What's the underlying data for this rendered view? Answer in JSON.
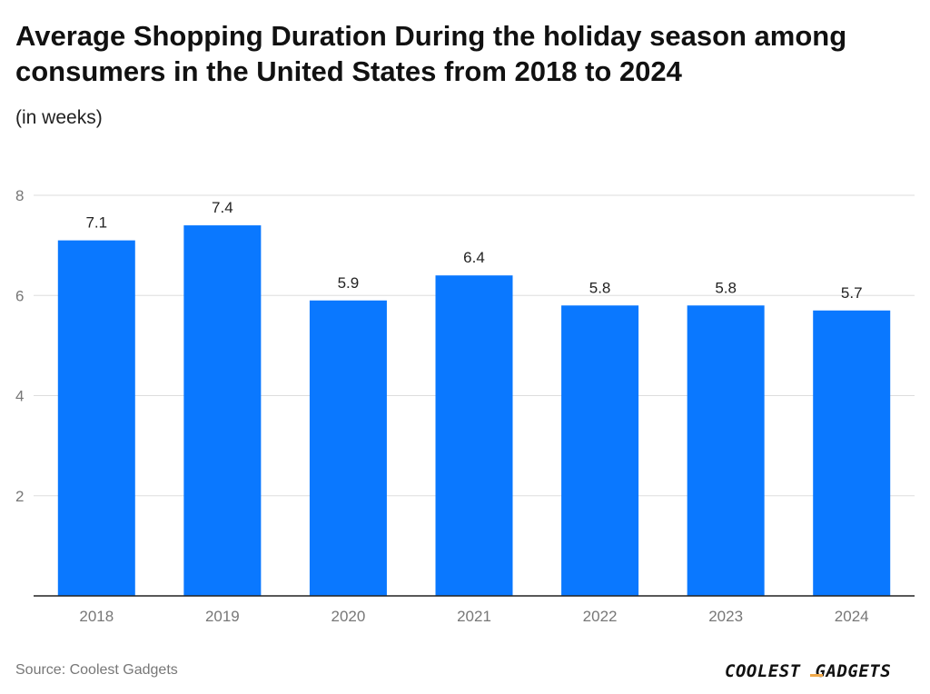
{
  "header": {
    "title": "Average Shopping Duration During the holiday season among consumers in the United States from 2018 to 2024",
    "subtitle": "(in weeks)"
  },
  "footer": {
    "source": "Source: Coolest Gadgets",
    "logo_text_left": "COOLEST",
    "logo_text_right": "GADGETS"
  },
  "colors": {
    "bar": "#0a78ff",
    "grid": "#dddddd",
    "axis": "#222222",
    "tick_label": "#777777",
    "data_label": "#222222",
    "logo_accent": "#f0a94a"
  },
  "chart_data": {
    "type": "bar",
    "title": "Average Shopping Duration During the holiday season among consumers in the United States from 2018 to 2024",
    "subtitle": "(in weeks)",
    "categories": [
      "2018",
      "2019",
      "2020",
      "2021",
      "2022",
      "2023",
      "2024"
    ],
    "values": [
      7.1,
      7.4,
      5.9,
      6.4,
      5.8,
      5.8,
      5.7
    ],
    "data_labels": [
      "7.1",
      "7.4",
      "5.9",
      "6.4",
      "5.8",
      "5.8",
      "5.7"
    ],
    "ylim": [
      0,
      8
    ],
    "yticks": [
      2,
      4,
      6,
      8
    ],
    "ytick_labels": [
      "2",
      "4",
      "6",
      "8"
    ],
    "grid": true,
    "xlabel": "",
    "ylabel": ""
  }
}
